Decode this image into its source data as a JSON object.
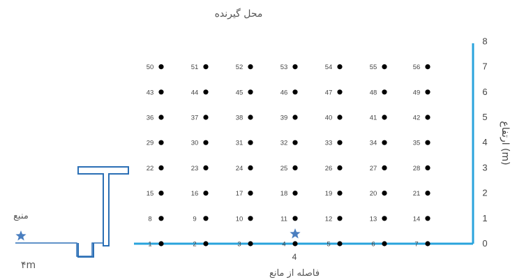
{
  "title": "محل گیرنده",
  "x_axis_label": "فاصله از مانع",
  "x_axis_tick": "4",
  "y_axis_label": "ارتفاع (m)",
  "y_ticks": [
    "0",
    "1",
    "2",
    "3",
    "4",
    "5",
    "6",
    "7",
    "8"
  ],
  "source_label": "منبع",
  "distance_label": "۴m",
  "colors": {
    "line": "#29a3dc",
    "barrier": "#2b6fb5",
    "star": "#4a7ebf",
    "point": "#000000"
  },
  "chart_data": {
    "type": "scatter",
    "rows": 8,
    "cols": 7,
    "point_labels": [
      "1",
      "2",
      "3",
      "4",
      "5",
      "6",
      "7",
      "8",
      "9",
      "10",
      "11",
      "12",
      "13",
      "14",
      "15",
      "16",
      "17",
      "18",
      "19",
      "20",
      "21",
      "22",
      "23",
      "24",
      "25",
      "26",
      "27",
      "28",
      "29",
      "30",
      "31",
      "32",
      "33",
      "34",
      "35",
      "36",
      "37",
      "38",
      "39",
      "40",
      "41",
      "42",
      "43",
      "44",
      "45",
      "46",
      "47",
      "48",
      "49",
      "50",
      "51",
      "52",
      "53",
      "54",
      "55",
      "56"
    ],
    "ylim": [
      0,
      8
    ]
  }
}
